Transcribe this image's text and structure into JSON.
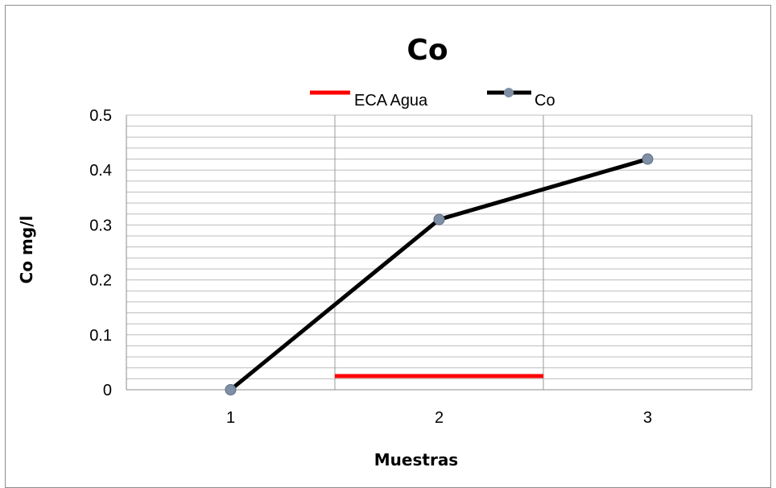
{
  "chart_data": {
    "type": "line",
    "title": "Co",
    "xlabel": "Muestras",
    "ylabel": "Co mg/l",
    "categories": [
      "1",
      "2",
      "3"
    ],
    "ylim": [
      0,
      0.5
    ],
    "y_ticks": [
      "0",
      "0.1",
      "0.2",
      "0.3",
      "0.4",
      "0.5"
    ],
    "grid": true,
    "legend_position": "top",
    "series": [
      {
        "name": "ECA Agua",
        "x_range": [
          1.5,
          2.5
        ],
        "value": 0.025,
        "color": "#ff0000"
      },
      {
        "name": "Co",
        "values": [
          0.0,
          0.31,
          0.42
        ],
        "color": "#000000",
        "marker_color": "#7f8fa6"
      }
    ]
  }
}
